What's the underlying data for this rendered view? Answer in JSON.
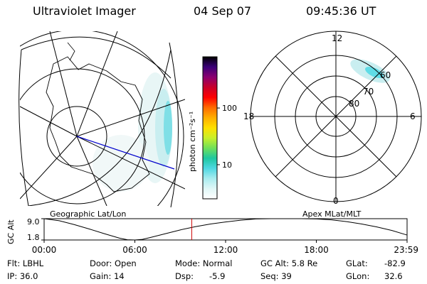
{
  "header": {
    "title": "Ultraviolet Imager",
    "date": "04 Sep 07",
    "time": "09:45:36 UT"
  },
  "panels": {
    "left_label": "Geographic Lat/Lon",
    "right_label": "Apex MLat/MLT"
  },
  "colorbar": {
    "label": "photon cm⁻²s⁻¹",
    "ticks": [
      {
        "value": 10,
        "label": "10"
      },
      {
        "value": 100,
        "label": "100"
      }
    ],
    "range": [
      2.5,
      800
    ],
    "scale": "log",
    "colors": [
      "#ffffff",
      "#e0f7f7",
      "#a8ecef",
      "#4fd8e2",
      "#1fc7a0",
      "#6fe05a",
      "#c8f02a",
      "#ffe000",
      "#ffae00",
      "#ff6a00",
      "#ff0000",
      "#c8002a",
      "#8a0070",
      "#3a0078",
      "#000000"
    ]
  },
  "polar": {
    "mlt_labels": [
      "12",
      "18",
      "6",
      "0"
    ],
    "mlat_labels": [
      "60",
      "70",
      "80"
    ]
  },
  "chart_data": {
    "type": "line",
    "title": "",
    "ylabel": "GC Alt",
    "yticks": [
      "9.0",
      "1.8"
    ],
    "ylim": [
      1.8,
      9.0
    ],
    "xticks": [
      "00:00",
      "06:00",
      "12:00",
      "18:00",
      "23:59"
    ],
    "xlim_hours": [
      0,
      24
    ],
    "current_time_hours": 9.76,
    "series": [
      {
        "x": [
          0,
          1,
          2,
          3,
          4,
          5,
          5.5,
          6,
          6.5,
          7,
          8,
          9,
          10,
          11,
          12,
          13,
          14,
          15,
          16,
          17,
          18,
          19,
          20,
          21,
          22,
          23,
          23.98
        ],
        "y": [
          9.0,
          8.3,
          7.0,
          5.5,
          3.9,
          2.4,
          1.9,
          1.8,
          2.0,
          2.6,
          3.9,
          5.2,
          6.3,
          7.2,
          7.9,
          8.5,
          8.9,
          9.0,
          9.0,
          9.0,
          8.9,
          8.6,
          8.0,
          7.2,
          6.2,
          5.0,
          3.5
        ]
      }
    ]
  },
  "info": {
    "flt": "Flt: LBHL",
    "ip": "IP: 36.0",
    "door": "Door: Open",
    "gain": "Gain: 14",
    "mode": "Mode: Normal",
    "dsp_label": "Dsp:",
    "dsp_value": "-5.9",
    "gc_alt": "GC Alt: 5.8 Re",
    "seq": "Seq: 39",
    "glat": "GLat:",
    "glat_value": "-82.9",
    "glon": "GLon:",
    "glon_value": "32.6"
  }
}
